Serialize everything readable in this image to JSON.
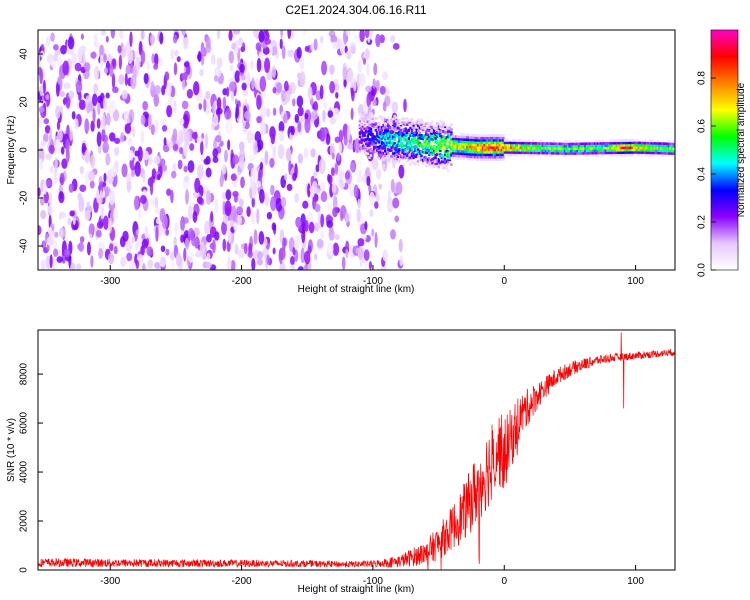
{
  "figure": {
    "title": "C2E1.2024.304.06.16.R11"
  },
  "chart_data": [
    {
      "type": "heatmap",
      "xlabel": "Height of straight line (km)",
      "ylabel": "Frequency (Hz)",
      "xlim": [
        -355,
        130
      ],
      "ylim": [
        -50,
        50
      ],
      "xticks": [
        -300,
        -200,
        -100,
        0,
        100
      ],
      "yticks": [
        -40,
        -20,
        0,
        20,
        40
      ],
      "colorbar": {
        "label": "Normalized spectral amplitude",
        "range": [
          0,
          1
        ],
        "ticks": [
          "0.0",
          "0.2",
          "0.4",
          "0.6",
          "0.8"
        ],
        "colormap": [
          "#ffffff",
          "#e6c8ff",
          "#8c00ff",
          "#0000ff",
          "#00ffff",
          "#00ff00",
          "#ffff00",
          "#ff8000",
          "#ff0000",
          "#ff00c8"
        ]
      },
      "noise_region_x": [
        -355,
        -70
      ],
      "noise_level": 0.1,
      "signal_center_freq_hz": [
        {
          "x": -110,
          "f": 6
        },
        {
          "x": -80,
          "f": 4
        },
        {
          "x": -50,
          "f": 2
        },
        {
          "x": -20,
          "f": 1
        },
        {
          "x": 0,
          "f": 1
        },
        {
          "x": 50,
          "f": 0.5
        },
        {
          "x": 100,
          "f": 1
        },
        {
          "x": 130,
          "f": 0.5
        }
      ],
      "signal_peak_amplitude": [
        {
          "x": -110,
          "a": 0.25
        },
        {
          "x": -90,
          "a": 0.45
        },
        {
          "x": -60,
          "a": 0.55
        },
        {
          "x": -30,
          "a": 0.7
        },
        {
          "x": -10,
          "a": 0.85
        },
        {
          "x": 0,
          "a": 0.8
        },
        {
          "x": 10,
          "a": 0.75
        },
        {
          "x": 30,
          "a": 0.6
        },
        {
          "x": 80,
          "a": 0.6
        },
        {
          "x": 90,
          "a": 0.95
        },
        {
          "x": 100,
          "a": 0.7
        },
        {
          "x": 130,
          "a": 0.6
        }
      ]
    },
    {
      "type": "line",
      "xlabel": "Height of straight line (km)",
      "ylabel": "SNR (10 * v/v)",
      "xlim": [
        -355,
        130
      ],
      "ylim": [
        0,
        9800
      ],
      "xticks": [
        -300,
        -200,
        -100,
        0,
        100
      ],
      "yticks": [
        0,
        2000,
        4000,
        6000,
        8000
      ],
      "series": [
        {
          "color": "#ff0000",
          "x": [
            -355,
            -300,
            -250,
            -200,
            -150,
            -120,
            -100,
            -80,
            -60,
            -50,
            -40,
            -30,
            -20,
            -10,
            -5,
            0,
            5,
            10,
            20,
            30,
            40,
            50,
            60,
            70,
            80,
            90,
            100,
            110,
            120,
            130
          ],
          "y": [
            300,
            290,
            280,
            270,
            260,
            230,
            250,
            350,
            700,
            1100,
            1700,
            2400,
            3400,
            4400,
            5000,
            4700,
            5300,
            6100,
            6800,
            7400,
            7900,
            8200,
            8400,
            8550,
            8650,
            8700,
            8750,
            8800,
            8850,
            8900
          ],
          "noise_amplitude": [
            180,
            170,
            160,
            150,
            140,
            130,
            140,
            250,
            500,
            700,
            900,
            1200,
            1500,
            1700,
            1600,
            1500,
            1300,
            1000,
            700,
            450,
            350,
            300,
            250,
            200,
            180,
            160,
            160,
            150,
            150,
            150
          ]
        }
      ],
      "annotations": [
        {
          "x": 89,
          "y": 9700,
          "type": "spike_up"
        },
        {
          "x": 91,
          "y": 6600,
          "type": "spike_down"
        }
      ]
    }
  ]
}
